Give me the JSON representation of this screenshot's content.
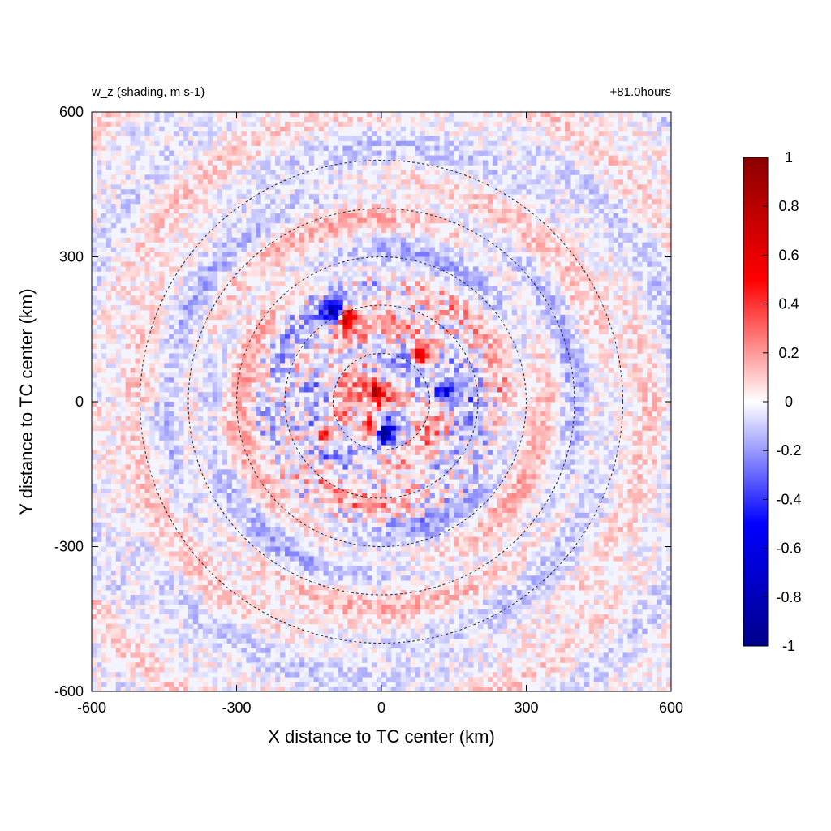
{
  "chart_data": {
    "type": "heatmap",
    "title_left": "w_z (shading, m s-1)",
    "title_right": "+81.0hours",
    "xlabel": "X distance to TC center (km)",
    "ylabel": "Y distance to TC center (km)",
    "xlim": [
      -600,
      600
    ],
    "ylim": [
      -600,
      600
    ],
    "xticks": [
      -600,
      -300,
      0,
      300,
      600
    ],
    "yticks": [
      -600,
      -300,
      0,
      300,
      600
    ],
    "colorbar": {
      "min": -1,
      "max": 1,
      "ticks": [
        "-1",
        "-0.8",
        "-0.6",
        "-0.4",
        "-0.2",
        "0",
        "0.2",
        "0.4",
        "0.6",
        "0.8",
        "1"
      ],
      "colors": [
        "#00008b",
        "#0000ff",
        "#ffffff",
        "#ff0000",
        "#8b0000"
      ]
    },
    "range_rings_km": [
      100,
      200,
      300,
      400,
      500
    ],
    "hotspots": [
      {
        "x": -95,
        "y": 185,
        "value": -1.0
      },
      {
        "x": -75,
        "y": 175,
        "value": 0.9
      },
      {
        "x": -10,
        "y": 20,
        "value": 1.0
      },
      {
        "x": 5,
        "y": -65,
        "value": -1.0
      },
      {
        "x": -15,
        "y": -55,
        "value": 0.8
      },
      {
        "x": 85,
        "y": 95,
        "value": 0.8
      },
      {
        "x": 130,
        "y": 20,
        "value": -0.6
      },
      {
        "x": -120,
        "y": -70,
        "value": 0.6
      }
    ]
  }
}
